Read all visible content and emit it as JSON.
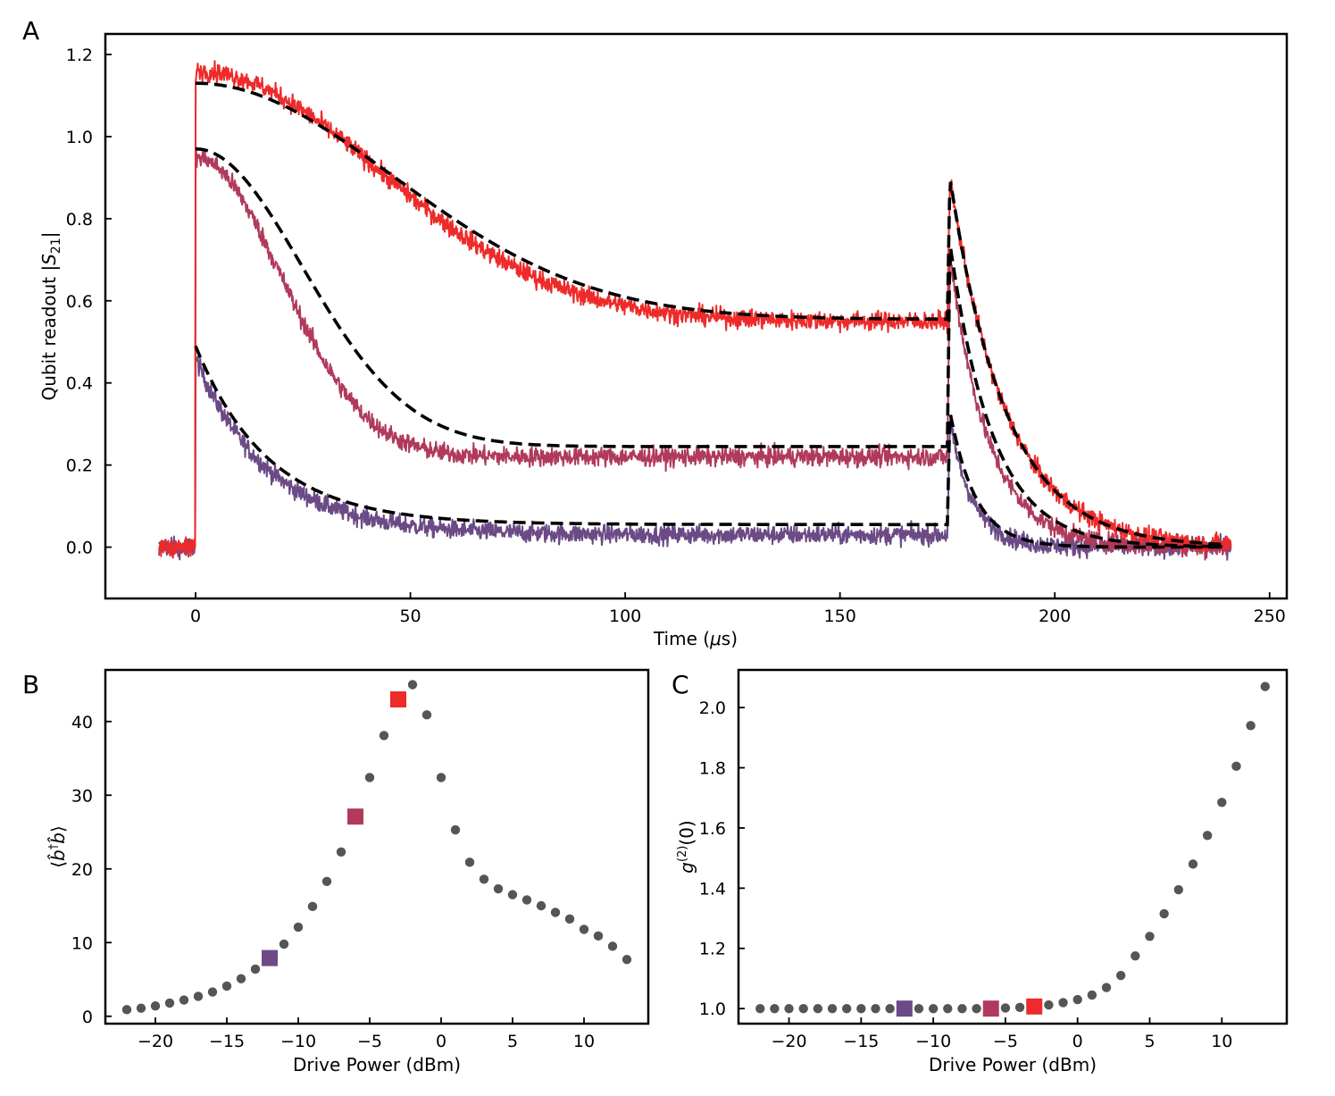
{
  "chart_data": [
    {
      "panel": "A",
      "type": "line",
      "xlabel": "Time (μs)",
      "ylabel": "Qubit readout |S21|",
      "xlim": [
        -21,
        254
      ],
      "ylim": [
        -0.125,
        1.25
      ],
      "xticks": [
        0,
        50,
        100,
        150,
        200,
        250
      ],
      "yticks": [
        0.0,
        0.2,
        0.4,
        0.6,
        0.8,
        1.0,
        1.2
      ],
      "drive_on_us": 0,
      "drive_off_us": 175,
      "x_start_us": -8.5,
      "x_end_us": 241,
      "noise_amplitude": 0.022,
      "series": [
        {
          "name": "-12 dBm",
          "color": "#6b4a86",
          "peak": 0.46,
          "steady": 0.03,
          "tau_on": 17,
          "shape_on": 1,
          "peak_off": 0.3,
          "tau_off": 5.5
        },
        {
          "name": "-6 dBm",
          "color": "#b03a5b",
          "peak": 0.95,
          "steady": 0.22,
          "tau_on": 28,
          "shape_on": 2,
          "peak_off": 0.71,
          "tau_off": 9
        },
        {
          "name": "-3 dBm",
          "color": "#ee2a2a",
          "peak": 1.16,
          "steady": 0.55,
          "tau_on": 60,
          "shape_on": 2,
          "peak_off": 0.9,
          "tau_off": 13
        }
      ],
      "fits": [
        {
          "name": "fit -12 dBm",
          "color": "#000000",
          "style": "dashed",
          "peak": 0.49,
          "steady": 0.055,
          "tau_on": 17,
          "shape_on": 1,
          "peak_off": 0.33,
          "tau_off": 6
        },
        {
          "name": "fit -6 dBm",
          "color": "#000000",
          "style": "dashed",
          "peak": 0.97,
          "steady": 0.245,
          "tau_on": 35,
          "shape_on": 2,
          "peak_off": 0.74,
          "tau_off": 10
        },
        {
          "name": "fit -3 dBm",
          "color": "#000000",
          "style": "dashed",
          "peak": 1.13,
          "steady": 0.555,
          "tau_on": 65,
          "shape_on": 2,
          "peak_off": 0.9,
          "tau_off": 13
        }
      ]
    },
    {
      "panel": "B",
      "type": "scatter",
      "xlabel": "Drive Power (dBm)",
      "ylabel": "⟨b̂†b̂⟩",
      "xlim": [
        -23.5,
        14.5
      ],
      "ylim": [
        -1,
        47
      ],
      "xticks": [
        -20,
        -15,
        -10,
        -5,
        0,
        5,
        10
      ],
      "yticks": [
        0,
        10,
        20,
        30,
        40
      ],
      "x": [
        -22,
        -21,
        -20,
        -19,
        -18,
        -17,
        -16,
        -15,
        -14,
        -13,
        -12,
        -11,
        -10,
        -9,
        -8,
        -7,
        -6,
        -5,
        -4,
        -3,
        -2,
        -1,
        0,
        1,
        2,
        3,
        4,
        5,
        6,
        7,
        8,
        9,
        10,
        11,
        12,
        13
      ],
      "y": [
        0.9,
        1.1,
        1.4,
        1.8,
        2.2,
        2.7,
        3.3,
        4.1,
        5.1,
        6.4,
        7.9,
        9.8,
        12.1,
        14.9,
        18.3,
        22.3,
        27.1,
        32.4,
        38.1,
        43.0,
        45.0,
        40.9,
        32.4,
        25.3,
        20.9,
        18.6,
        17.3,
        16.5,
        15.8,
        15.0,
        14.1,
        13.2,
        11.8,
        10.9,
        9.5,
        7.7
      ],
      "highlights": [
        {
          "x": -12,
          "y": 7.9,
          "color": "#6b4a86"
        },
        {
          "x": -6,
          "y": 27.1,
          "color": "#b03a5b"
        },
        {
          "x": -3,
          "y": 43.0,
          "color": "#ee2a2a"
        }
      ],
      "marker_color": "#555555"
    },
    {
      "panel": "C",
      "type": "scatter",
      "xlabel": "Drive Power (dBm)",
      "ylabel": "g(2)(0)",
      "xlim": [
        -23.5,
        14.5
      ],
      "ylim": [
        0.95,
        2.125
      ],
      "xticks": [
        -20,
        -15,
        -10,
        -5,
        0,
        5,
        10
      ],
      "yticks": [
        1.0,
        1.2,
        1.4,
        1.6,
        1.8,
        2.0
      ],
      "x": [
        -22,
        -21,
        -20,
        -19,
        -18,
        -17,
        -16,
        -15,
        -14,
        -13,
        -12,
        -11,
        -10,
        -9,
        -8,
        -7,
        -6,
        -5,
        -4,
        -3,
        -2,
        -1,
        0,
        1,
        2,
        3,
        4,
        5,
        6,
        7,
        8,
        9,
        10,
        11,
        12,
        13
      ],
      "y": [
        1.0,
        1.0,
        1.0,
        1.0,
        1.0,
        1.0,
        1.0,
        1.0,
        1.0,
        1.0,
        1.0,
        1.0,
        1.0,
        1.0,
        1.0,
        1.0,
        1.0,
        1.002,
        1.004,
        1.007,
        1.012,
        1.02,
        1.03,
        1.045,
        1.07,
        1.11,
        1.175,
        1.24,
        1.315,
        1.395,
        1.48,
        1.575,
        1.685,
        1.805,
        1.94,
        2.07
      ],
      "highlights": [
        {
          "x": -12,
          "y": 1.0,
          "color": "#6b4a86"
        },
        {
          "x": -6,
          "y": 1.0,
          "color": "#b03a5b"
        },
        {
          "x": -3,
          "y": 1.007,
          "color": "#ee2a2a"
        }
      ],
      "marker_color": "#555555"
    }
  ]
}
